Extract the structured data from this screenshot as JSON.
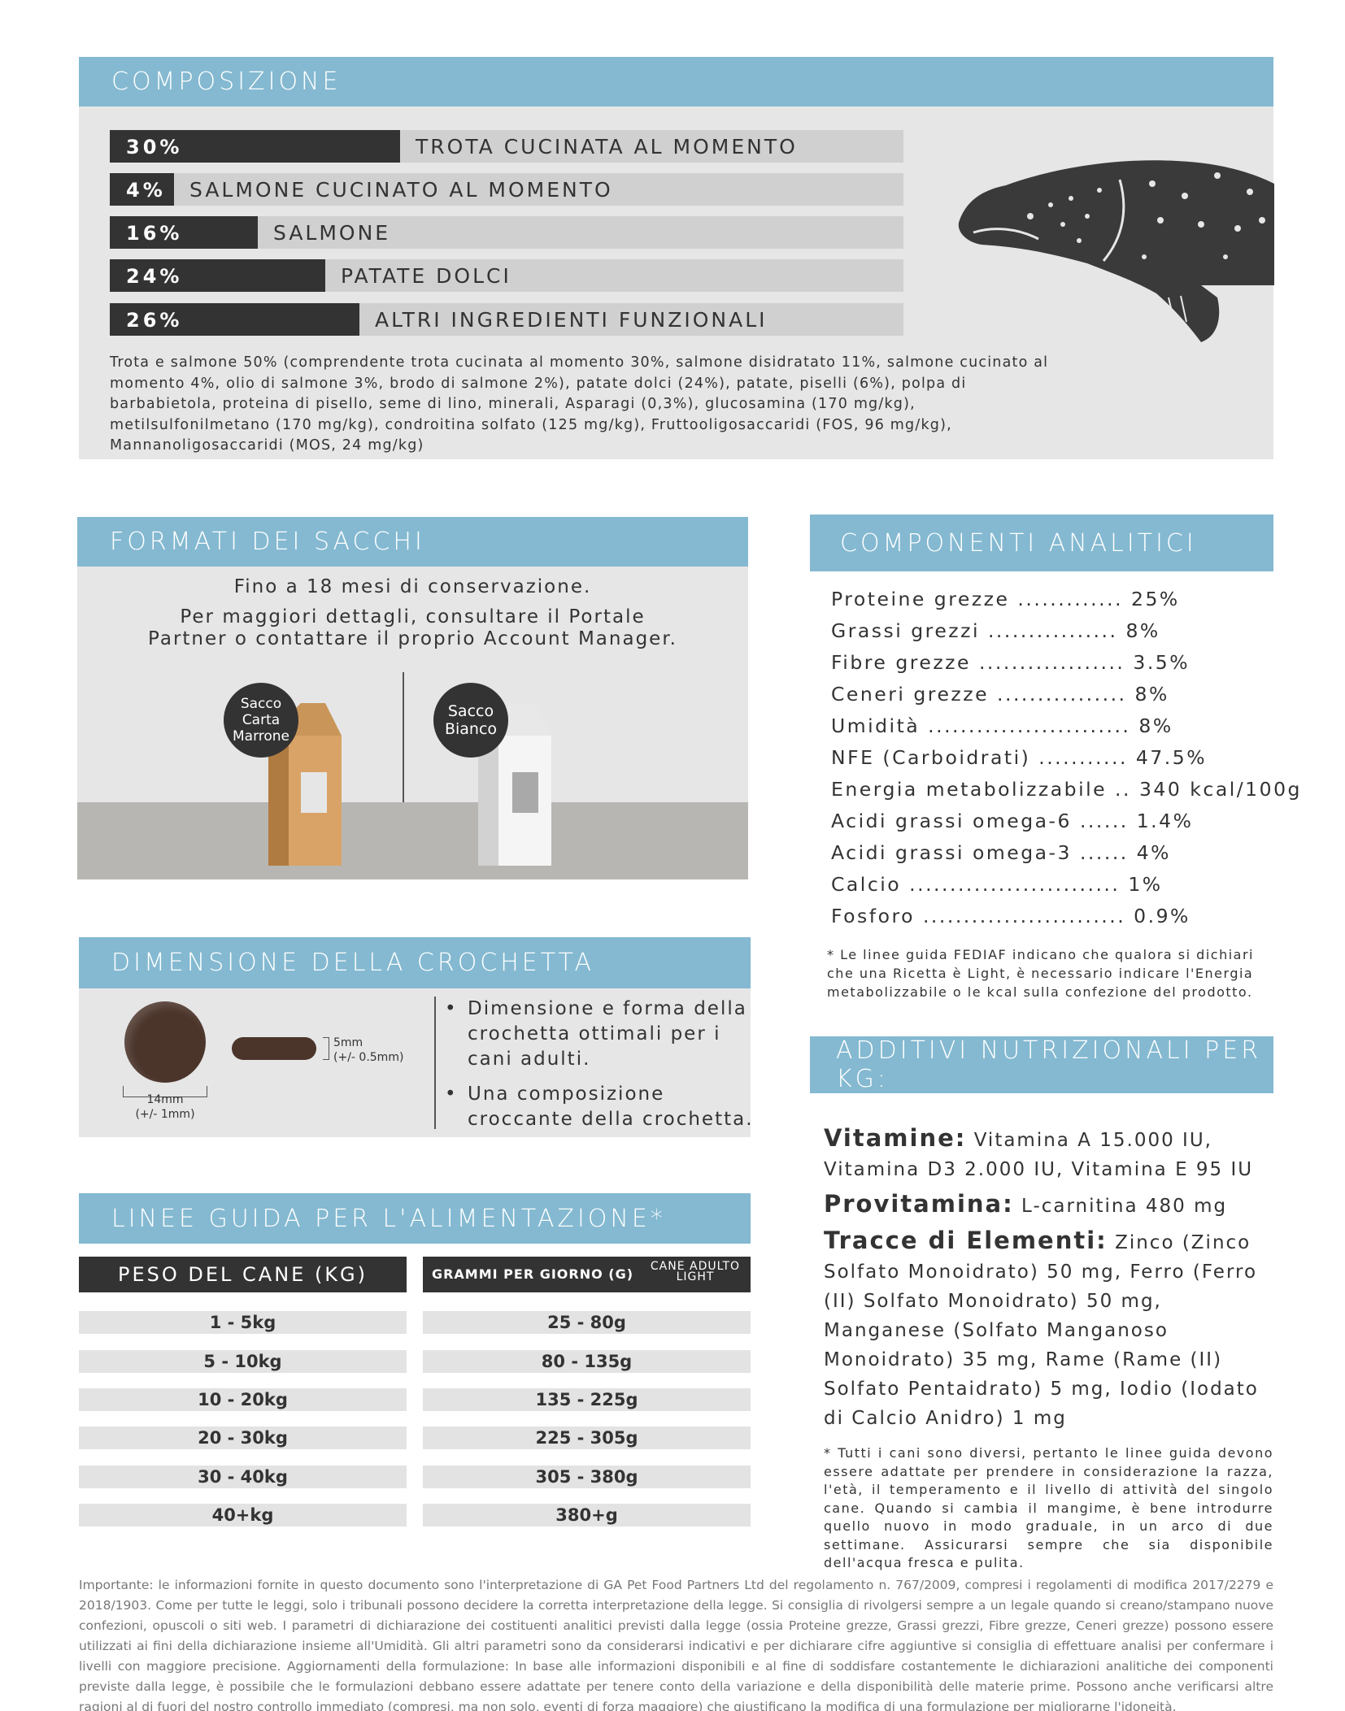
{
  "composizione": {
    "title": "COMPOSIZIONE",
    "bars": [
      {
        "pct": "30%",
        "label": "TROTA CUCINATA AL MOMENTO",
        "value": 30
      },
      {
        "pct": "4%",
        "label": "SALMONE CUCINATO AL MOMENTO",
        "value": 4
      },
      {
        "pct": "16%",
        "label": "SALMONE",
        "value": 16
      },
      {
        "pct": "24%",
        "label": "PATATE DOLCI",
        "value": 24
      },
      {
        "pct": "26%",
        "label": "ALTRI INGREDIENTI FUNZIONALI",
        "value": 26
      }
    ],
    "description": "Trota e salmone 50% (comprendente trota cucinata al momento 30%, salmone disidratato 11%, salmone cucinato al momento 4%, olio di salmone 3%, brodo di salmone 2%), patate dolci (24%), patate, piselli (6%), polpa di barbabietola, proteina di pisello, seme di lino, minerali, Asparagi (0,3%), glucosamina (170 mg/kg), metilsulfonilmetano (170 mg/kg), condroitina solfato (125 mg/kg), Fruttooligosaccaridi (FOS, 96 mg/kg), Mannanoligosaccaridi (MOS, 24 mg/kg)"
  },
  "formati": {
    "title": "FORMATI DEI SACCHI",
    "line1": "Fino a 18 mesi di conservazione.",
    "line2": "Per maggiori dettagli, consultare il Portale",
    "line3": "Partner o contattare il proprio Account Manager.",
    "bag1_l1": "Sacco",
    "bag1_l2": "Carta",
    "bag1_l3": "Marrone",
    "bag2_l1": "Sacco",
    "bag2_l2": "Bianco"
  },
  "analitici": {
    "title": "COMPONENTI ANALITICI",
    "rows": [
      "Proteine grezze ............. 25%",
      "Grassi grezzi ................ 8%",
      "Fibre grezze .................. 3.5%",
      "Ceneri grezze ................ 8%",
      "Umidità ......................... 8%",
      "NFE (Carboidrati) ........... 47.5%",
      "Energia metabolizzabile .. 340 kcal/100g",
      "Acidi grassi omega-6 ...... 1.4%",
      "Acidi grassi omega-3 ...... 4%",
      "Calcio .......................... 1%",
      "Fosforo ......................... 0.9%"
    ],
    "note": "* Le linee guida FEDIAF indicano che qualora si dichiari che una Ricetta è Light, è necessario indicare l'Energia metabolizzabile o le kcal sulla confezione del prodotto."
  },
  "dimensione": {
    "title": "DIMENSIONE DELLA CROCHETTA",
    "diam_l1": "14mm",
    "diam_l2": "(+/- 1mm)",
    "thick_l1": "5mm",
    "thick_l2": "(+/- 0.5mm)",
    "bullet1": "Dimensione e forma della crochetta ottimali per i cani adulti.",
    "bullet2": "Una composizione croccante della crochetta."
  },
  "additivi": {
    "title": "ADDITIVI NUTRIZIONALI PER KG:",
    "vit_k": "Vitamine:",
    "vit_v": "Vitamina A 15.000 IU, Vitamina D3 2.000 IU, Vitamina E 95 IU",
    "pro_k": "Provitamina:",
    "pro_v": "L-carnitina 480 mg",
    "tra_k": "Tracce di Elementi:",
    "tra_v": "Zinco (Zinco Solfato Monoidrato) 50 mg, Ferro (Ferro (II) Solfato Monoidrato) 50 mg, Manganese (Solfato Manganoso Monoidrato) 35 mg, Rame (Rame (II) Solfato Pentaidrato) 5 mg, Iodio (Iodato di Calcio Anidro) 1 mg",
    "note": "* Tutti i cani sono diversi, pertanto le linee guida devono essere adattate per prendere in considerazione la razza, l'età, il temperamento e il livello di attività del singolo cane. Quando si cambia il mangime, è bene introdurre quello nuovo in modo graduale, in un arco di due settimane. Assicurarsi sempre che sia disponibile dell'acqua fresca e pulita."
  },
  "linee": {
    "title": "LINEE GUIDA PER L'ALIMENTAZIONE*",
    "col1": "PESO DEL CANE (KG)",
    "col2": "GRAMMI PER GIORNO (G)",
    "col3_l1": "CANE ADULTO",
    "col3_l2": "LIGHT",
    "rows": [
      {
        "peso": "1 - 5kg",
        "grammi": "25 - 80g"
      },
      {
        "peso": "5 - 10kg",
        "grammi": "80 - 135g"
      },
      {
        "peso": "10 - 20kg",
        "grammi": "135 - 225g"
      },
      {
        "peso": "20 - 30kg",
        "grammi": "225 - 305g"
      },
      {
        "peso": "30 - 40kg",
        "grammi": "305 - 380g"
      },
      {
        "peso": "40+kg",
        "grammi": "380+g"
      }
    ]
  },
  "footer": "Importante: le informazioni fornite in questo documento sono l'interpretazione di GA Pet Food Partners Ltd del regolamento n. 767/2009, compresi i regolamenti di modifica 2017/2279 e 2018/1903. Come per tutte le leggi, solo i tribunali possono decidere la corretta interpretazione della legge. Si consiglia di rivolgersi sempre a un legale quando si creano/stampano nuove confezioni, opuscoli o siti web. I parametri di dichiarazione dei costituenti analitici previsti dalla legge (ossia Proteine grezze, Grassi grezzi, Fibre grezze, Ceneri grezze) possono essere utilizzati ai fini della dichiarazione insieme all'Umidità. Gli altri parametri sono da considerarsi indicativi e per dichiarare cifre aggiuntive si consiglia di effettuare analisi per confermare i livelli con maggiore precisione. Aggiornamenti della formulazione: In base alle informazioni disponibili e al fine di soddisfare costantemente le dichiarazioni analitiche dei componenti previste dalla legge, è possibile che le formulazioni debbano essere adattate per tenere conto della variazione e della disponibilità delle materie prime. Possono anche verificarsi altre ragioni al di fuori del nostro controllo immediato (compresi, ma non solo, eventi di forza maggiore) che giustificano la modifica di una formulazione per migliorarne l'idoneità."
}
